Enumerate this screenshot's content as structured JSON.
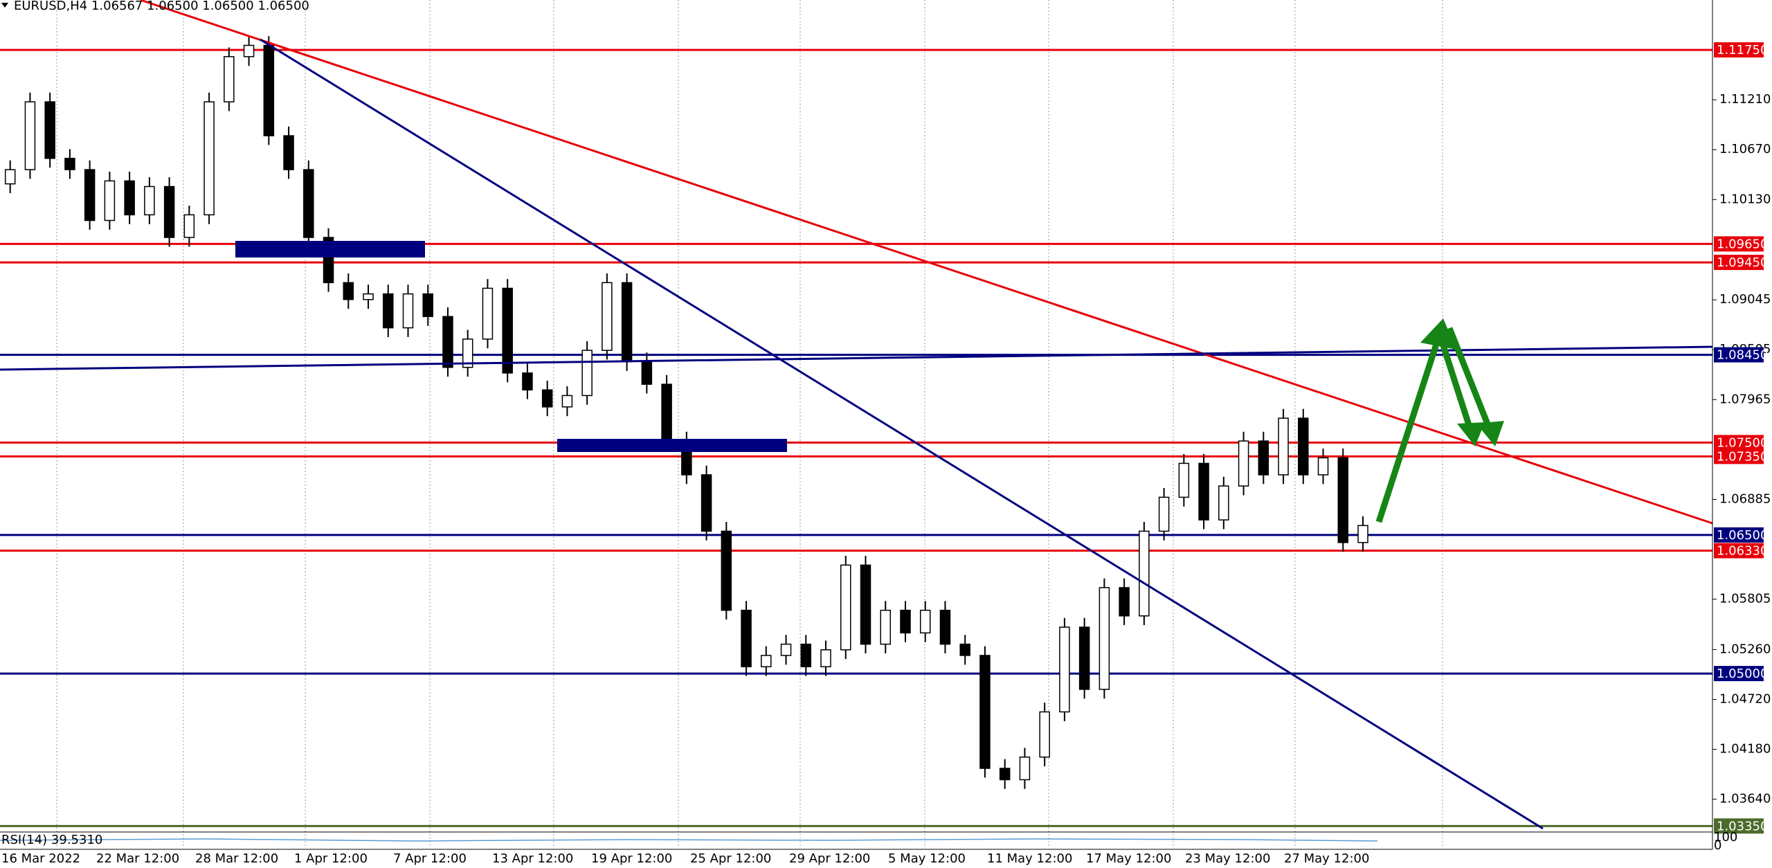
{
  "chart_data": {
    "type": "candlestick",
    "title": "EURUSD,H4 1.06567 1.06500 1.06500 1.06500",
    "open": [
      1.103,
      1.10454,
      1.11188,
      1.10576,
      1.10454,
      1.09904,
      1.10332,
      1.09965,
      1.10271,
      1.0972,
      1.09965,
      1.11188,
      1.11677,
      1.11799,
      1.10821,
      1.10454,
      1.0972,
      1.09231,
      1.09048,
      1.09109,
      1.08742,
      1.09109,
      1.08864,
      1.08314,
      1.0862,
      1.0917,
      1.08253,
      1.0807,
      1.07886,
      1.08009,
      1.08498,
      1.09231,
      1.08375,
      1.08131,
      1.07517,
      1.07151,
      1.06541,
      1.05685,
      1.05074,
      1.05196,
      1.05318,
      1.05074,
      1.05257,
      1.06174,
      1.05318,
      1.05685,
      1.0544,
      1.05685,
      1.05318,
      1.05196,
      1.03974,
      1.03851,
      1.04096,
      1.04585,
      1.05502,
      1.04829,
      1.0593,
      1.05624,
      1.06541,
      1.06908,
      1.07275,
      1.06663,
      1.0703,
      1.07517,
      1.07151,
      1.07764,
      1.07151,
      1.07335,
      1.06418
    ],
    "high": [
      1.10554,
      1.11288,
      1.11288,
      1.10676,
      1.10554,
      1.10432,
      1.10432,
      1.10371,
      1.10371,
      1.10065,
      1.11288,
      1.11777,
      1.11899,
      1.11899,
      1.10921,
      1.10554,
      1.0982,
      1.09331,
      1.09209,
      1.09209,
      1.09209,
      1.09209,
      1.08964,
      1.0872,
      1.0927,
      1.0927,
      1.08353,
      1.0817,
      1.08109,
      1.08598,
      1.09331,
      1.09331,
      1.08475,
      1.08231,
      1.07617,
      1.07251,
      1.06641,
      1.05785,
      1.05296,
      1.05418,
      1.05418,
      1.05357,
      1.06274,
      1.06274,
      1.05785,
      1.05785,
      1.05785,
      1.05785,
      1.05418,
      1.05296,
      1.04074,
      1.04196,
      1.04685,
      1.05602,
      1.05602,
      1.0603,
      1.0603,
      1.06641,
      1.07008,
      1.07375,
      1.07375,
      1.0713,
      1.07617,
      1.07617,
      1.07864,
      1.07864,
      1.07435,
      1.07435,
      1.06702
    ],
    "low": [
      1.102,
      1.10354,
      1.10476,
      1.10354,
      1.09804,
      1.09804,
      1.09865,
      1.09865,
      1.0962,
      1.0962,
      1.09865,
      1.11088,
      1.11577,
      1.10721,
      1.10354,
      1.0962,
      1.09131,
      1.08948,
      1.08948,
      1.08642,
      1.08642,
      1.08764,
      1.08214,
      1.08214,
      1.0852,
      1.08153,
      1.0797,
      1.07786,
      1.07786,
      1.07909,
      1.08398,
      1.08275,
      1.08031,
      1.07417,
      1.07051,
      1.06441,
      1.05585,
      1.04974,
      1.04974,
      1.05096,
      1.04974,
      1.04974,
      1.05157,
      1.05218,
      1.05218,
      1.0534,
      1.0534,
      1.05218,
      1.05096,
      1.03874,
      1.03751,
      1.03751,
      1.03996,
      1.04485,
      1.04729,
      1.04729,
      1.05524,
      1.05524,
      1.06441,
      1.06808,
      1.06563,
      1.06563,
      1.0693,
      1.07051,
      1.07051,
      1.07051,
      1.07051,
      1.06318,
      1.06318
    ],
    "close": [
      1.10454,
      1.11188,
      1.10576,
      1.10454,
      1.09904,
      1.10332,
      1.09965,
      1.10271,
      1.0972,
      1.09965,
      1.11188,
      1.11677,
      1.11799,
      1.10821,
      1.10454,
      1.0972,
      1.09231,
      1.09048,
      1.09109,
      1.08742,
      1.09109,
      1.08864,
      1.08314,
      1.0862,
      1.0917,
      1.08253,
      1.0807,
      1.07886,
      1.08009,
      1.08498,
      1.09231,
      1.08375,
      1.08131,
      1.07517,
      1.07151,
      1.06541,
      1.05685,
      1.05074,
      1.05196,
      1.05318,
      1.05074,
      1.05257,
      1.06174,
      1.05318,
      1.05685,
      1.0544,
      1.05685,
      1.05318,
      1.05196,
      1.03974,
      1.03851,
      1.04096,
      1.04585,
      1.05502,
      1.04829,
      1.0593,
      1.05624,
      1.06541,
      1.06908,
      1.07275,
      1.06663,
      1.0703,
      1.07517,
      1.07151,
      1.07764,
      1.07151,
      1.07335,
      1.06418,
      1.06602
    ],
    "x_tick_labels": [
      "16 Mar 2022",
      "22 Mar 12:00",
      "28 Mar 12:00",
      "1 Apr 12:00",
      "7 Apr 12:00",
      "13 Apr 12:00",
      "19 Apr 12:00",
      "25 Apr 12:00",
      "29 Apr 12:00",
      "5 May 12:00",
      "11 May 12:00",
      "17 May 12:00",
      "23 May 12:00",
      "27 May 12:00"
    ],
    "ylim": [
      1.033,
      1.1229
    ],
    "yticks": [
      {
        "value": 1.1121,
        "label": "1.11210"
      },
      {
        "value": 1.1067,
        "label": "1.10670"
      },
      {
        "value": 1.1013,
        "label": "1.10130"
      },
      {
        "value": 1.09045,
        "label": "1.09045"
      },
      {
        "value": 1.08505,
        "label": "1.08505"
      },
      {
        "value": 1.07965,
        "label": "1.07965"
      },
      {
        "value": 1.06885,
        "label": "1.06885"
      },
      {
        "value": 1.05805,
        "label": "1.05805"
      },
      {
        "value": 1.0526,
        "label": "1.05260"
      },
      {
        "value": 1.0472,
        "label": "1.04720"
      },
      {
        "value": 1.0418,
        "label": "1.04180"
      },
      {
        "value": 1.0364,
        "label": "1.03640"
      }
    ],
    "levels": [
      {
        "value": 1.1175,
        "label": "1.11750",
        "color": "#e8000b"
      },
      {
        "value": 1.0965,
        "label": "1.09650",
        "color": "#e8000b"
      },
      {
        "value": 1.0945,
        "label": "1.09450",
        "color": "#e8000b"
      },
      {
        "value": 1.0845,
        "label": "1.08450",
        "color": "#00007f"
      },
      {
        "value": 1.075,
        "label": "1.07500",
        "color": "#e8000b"
      },
      {
        "value": 1.0735,
        "label": "1.07350",
        "color": "#e8000b"
      },
      {
        "value": 1.065,
        "label": "1.06500",
        "color": "#00007f"
      },
      {
        "value": 1.0633,
        "label": "1.06330",
        "color": "#e8000b"
      },
      {
        "value": 1.05,
        "label": "1.05000",
        "color": "#00007f"
      },
      {
        "value": 1.0335,
        "label": "1.03350",
        "color": "#4b6b2a"
      }
    ],
    "indicator_label": "RSI(14) 39.5310",
    "indicator_ticks": [
      100,
      0
    ]
  }
}
